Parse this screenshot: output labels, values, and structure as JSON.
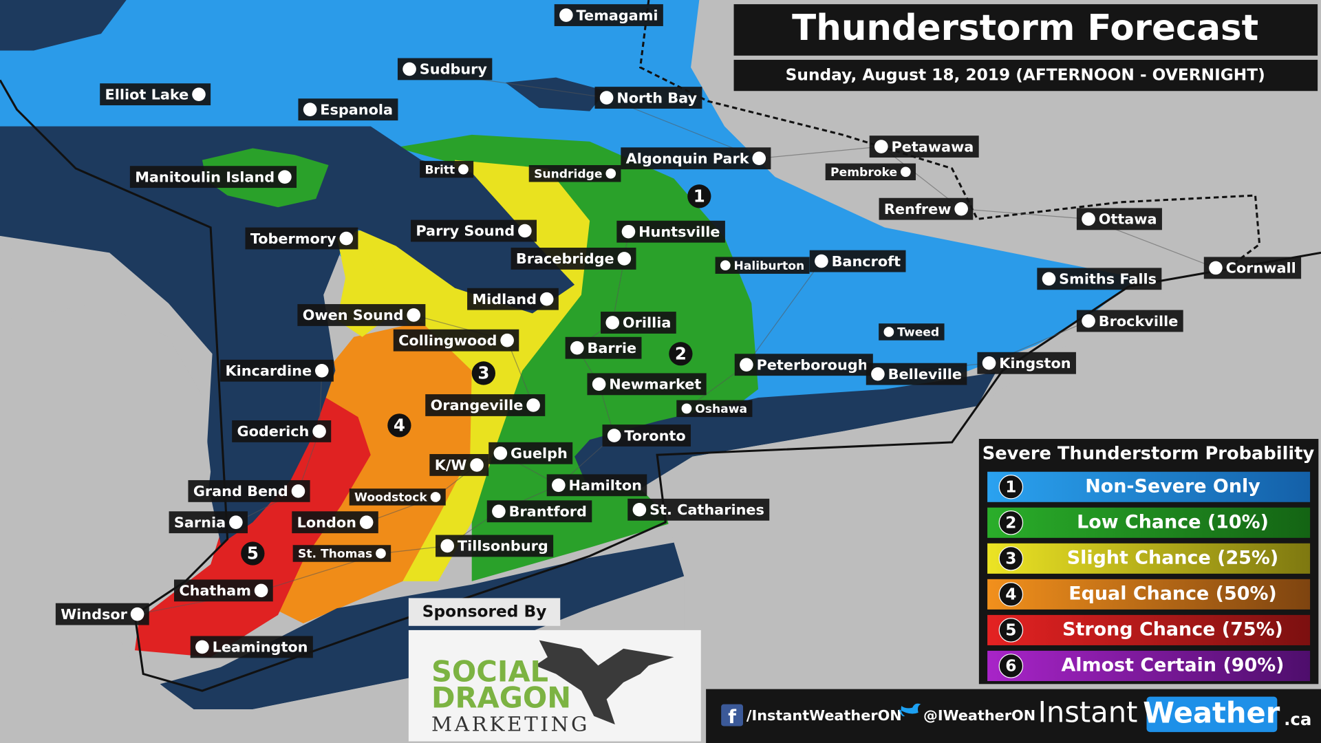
{
  "header": {
    "title": "Thunderstorm Forecast",
    "subtitle": "Sunday, August 18, 2019 (AFTERNOON - OVERNIGHT)"
  },
  "cities": [
    "Temagami",
    "Sudbury",
    "Elliot Lake",
    "Espanola",
    "North Bay",
    "Algonquin Park",
    "Petawawa",
    "Pembroke",
    "Manitoulin Island",
    "Britt",
    "Sundridge",
    "Renfrew",
    "Ottawa",
    "Huntsville",
    "Parry Sound",
    "Tobermory",
    "Bracebridge",
    "Haliburton",
    "Bancroft",
    "Smiths Falls",
    "Cornwall",
    "Midland",
    "Owen Sound",
    "Orillia",
    "Brockville",
    "Tweed",
    "Collingwood",
    "Barrie",
    "Kincardine",
    "Peterborough",
    "Belleville",
    "Kingston",
    "Newmarket",
    "Orangeville",
    "Oshawa",
    "Goderich",
    "Toronto",
    "Guelph",
    "K/W",
    "Grand Bend",
    "Hamilton",
    "Woodstock",
    "Brantford",
    "St. Catharines",
    "Sarnia",
    "London",
    "Tillsonburg",
    "St. Thomas",
    "Chatham",
    "Windsor",
    "Leamington"
  ],
  "zone_labels": [
    "1",
    "2",
    "3",
    "4",
    "5"
  ],
  "legend": {
    "title": "Severe Thunderstorm Probability",
    "items": [
      {
        "number": "1",
        "label": "Non-Severe Only"
      },
      {
        "number": "2",
        "label": "Low Chance (10%)"
      },
      {
        "number": "3",
        "label": "Slight Chance (25%)"
      },
      {
        "number": "4",
        "label": "Equal Chance (50%)"
      },
      {
        "number": "5",
        "label": "Strong Chance (75%)"
      },
      {
        "number": "6",
        "label": "Almost Certain (90%)"
      }
    ]
  },
  "sponsor": {
    "heading": "Sponsored By",
    "name_lines": [
      "SOCIAL",
      "DRAGON",
      "MARKETING"
    ]
  },
  "footer": {
    "facebook": "/InstantWeatherON",
    "twitter": "@IWeatherON",
    "brand": "Instant",
    "brand_highlight": "Weather",
    "brand_suffix": ".ca"
  }
}
